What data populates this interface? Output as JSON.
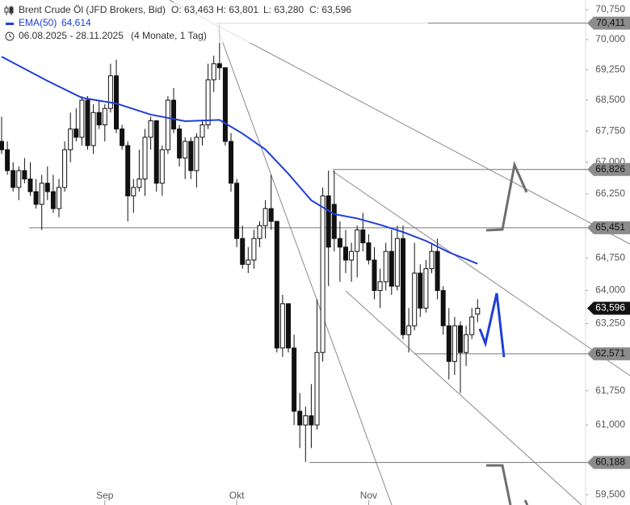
{
  "header": {
    "title": "Brent Crude Öl (JFD Brokers, Bid)",
    "ohlc": [
      "O: 63,463",
      "H: 63,801",
      "L: 63,280",
      "C: 63,596"
    ],
    "range": "06.08.2025 - 28.11.2025",
    "span": "(4 Monate, 1 Tag)"
  },
  "chart_data": {
    "type": "candlestick",
    "log_scale": true,
    "categories": [
      null,
      null,
      null,
      null,
      null,
      null,
      null,
      null,
      null,
      null,
      null,
      null,
      null,
      null,
      null,
      null,
      null,
      null,
      "Sep",
      null,
      null,
      null,
      null,
      null,
      null,
      null,
      null,
      null,
      null,
      null,
      null,
      null,
      null,
      null,
      null,
      null,
      null,
      null,
      null,
      null,
      null,
      "Okt",
      null,
      null,
      null,
      null,
      null,
      null,
      null,
      null,
      null,
      null,
      null,
      null,
      null,
      null,
      null,
      null,
      null,
      null,
      null,
      null,
      null,
      null,
      "Nov",
      null,
      null,
      null,
      null,
      null,
      null,
      null,
      null,
      null,
      null,
      null,
      null,
      null,
      null,
      null,
      null,
      null,
      null,
      null
    ],
    "ohlc": [
      [
        67500,
        68100,
        67200,
        67300
      ],
      [
        67300,
        67500,
        66700,
        66800
      ],
      [
        66800,
        67000,
        66300,
        66400
      ],
      [
        66400,
        66900,
        66100,
        66800
      ],
      [
        66800,
        67100,
        66500,
        66600
      ],
      [
        66600,
        67000,
        66200,
        66300
      ],
      [
        66300,
        66600,
        65900,
        66000
      ],
      [
        66000,
        66700,
        65400,
        66500
      ],
      [
        66500,
        66900,
        66100,
        66300
      ],
      [
        66300,
        66700,
        65800,
        65900
      ],
      [
        65900,
        66600,
        65700,
        66400
      ],
      [
        66400,
        67500,
        66300,
        67300
      ],
      [
        67300,
        68200,
        67000,
        67800
      ],
      [
        67800,
        68300,
        67500,
        67600
      ],
      [
        67600,
        68600,
        67400,
        68500
      ],
      [
        68500,
        68600,
        67300,
        67400
      ],
      [
        67400,
        68400,
        67200,
        68200
      ],
      [
        68200,
        68500,
        67800,
        67900
      ],
      [
        67900,
        68400,
        67500,
        68300
      ],
      [
        68300,
        69400,
        68200,
        69100
      ],
      [
        69100,
        69500,
        67700,
        67800
      ],
      [
        67800,
        67900,
        67300,
        67400
      ],
      [
        67400,
        67500,
        65600,
        66200
      ],
      [
        66200,
        66600,
        65800,
        66400
      ],
      [
        66400,
        67300,
        66300,
        66600
      ],
      [
        66600,
        67800,
        66200,
        67600
      ],
      [
        67600,
        68100,
        67300,
        68000
      ],
      [
        68000,
        68000,
        66300,
        66500
      ],
      [
        66500,
        67400,
        66200,
        67300
      ],
      [
        67300,
        68600,
        67200,
        68500
      ],
      [
        68500,
        68800,
        67700,
        67800
      ],
      [
        67800,
        67900,
        66900,
        67100
      ],
      [
        67100,
        67600,
        66600,
        67500
      ],
      [
        67500,
        67600,
        66600,
        66800
      ],
      [
        66800,
        67700,
        66400,
        67600
      ],
      [
        67600,
        68000,
        67400,
        67900
      ],
      [
        67900,
        69400,
        67800,
        69000
      ],
      [
        69000,
        69600,
        68700,
        69400
      ],
      [
        69400,
        70400,
        69000,
        69300
      ],
      [
        69300,
        69300,
        67400,
        67500
      ],
      [
        67500,
        67700,
        66300,
        66500
      ],
      [
        66500,
        66600,
        65000,
        65200
      ],
      [
        65200,
        65500,
        64500,
        64600
      ],
      [
        64600,
        65000,
        64400,
        64700
      ],
      [
        64700,
        65400,
        64500,
        65200
      ],
      [
        65200,
        65600,
        65000,
        65500
      ],
      [
        65500,
        66100,
        65200,
        65900
      ],
      [
        65900,
        66700,
        65400,
        65600
      ],
      [
        65600,
        65600,
        62600,
        62700
      ],
      [
        62700,
        63900,
        62500,
        63700
      ],
      [
        63700,
        63700,
        62600,
        62700
      ],
      [
        62700,
        63000,
        61000,
        61300
      ],
      [
        61300,
        61700,
        60500,
        61000
      ],
      [
        61000,
        61400,
        60200,
        61200
      ],
      [
        61200,
        61900,
        60500,
        61000
      ],
      [
        61000,
        63800,
        60900,
        62600
      ],
      [
        62600,
        66400,
        62400,
        66200
      ],
      [
        66200,
        66800,
        64100,
        65000
      ],
      [
        66000,
        66800,
        64900,
        65200
      ],
      [
        65200,
        65600,
        64200,
        65000
      ],
      [
        65000,
        65400,
        64400,
        64700
      ],
      [
        64700,
        65100,
        64200,
        64900
      ],
      [
        64900,
        65500,
        64300,
        65400
      ],
      [
        65400,
        65800,
        64900,
        65100
      ],
      [
        65100,
        65300,
        64600,
        64700
      ],
      [
        64700,
        65000,
        63800,
        64000
      ],
      [
        64000,
        64500,
        63600,
        64200
      ],
      [
        64200,
        65100,
        64000,
        64900
      ],
      [
        64900,
        65400,
        63900,
        64100
      ],
      [
        64100,
        65500,
        64000,
        65200
      ],
      [
        65200,
        65500,
        62900,
        63000
      ],
      [
        63000,
        63600,
        62600,
        63200
      ],
      [
        63200,
        65100,
        63100,
        64400
      ],
      [
        64400,
        64600,
        63400,
        63600
      ],
      [
        63600,
        64700,
        63500,
        64500
      ],
      [
        64500,
        65100,
        64400,
        64900
      ],
      [
        64900,
        65200,
        63800,
        64000
      ],
      [
        64000,
        64100,
        63000,
        63200
      ],
      [
        63200,
        63600,
        62000,
        62400
      ],
      [
        62400,
        63400,
        62100,
        63200
      ],
      [
        63200,
        63300,
        61700,
        62600
      ],
      [
        62600,
        63200,
        62300,
        63000
      ],
      [
        63000,
        63600,
        62900,
        63400
      ],
      [
        63463,
        63801,
        63280,
        63596
      ]
    ],
    "ema": {
      "name": "EMA(50)",
      "label": "64,614",
      "color": "#1f3fd6",
      "x": [
        0,
        8,
        14,
        20,
        26,
        32,
        38,
        42,
        46,
        50,
        54,
        58,
        62,
        66,
        70,
        74,
        78,
        83
      ],
      "values": [
        69575,
        68975,
        68560,
        68420,
        68150,
        67990,
        68020,
        67690,
        67305,
        66725,
        66095,
        65770,
        65670,
        65520,
        65350,
        65145,
        64880,
        64614
      ]
    },
    "ylim": [
      59282,
      70996
    ],
    "yticks": [
      {
        "value": 59500,
        "label": "59,500"
      },
      {
        "value": 61000,
        "label": "61,000"
      },
      {
        "value": 61750,
        "label": "61,750"
      },
      {
        "value": 63250,
        "label": "63,250"
      },
      {
        "value": 64000,
        "label": "64,000"
      },
      {
        "value": 64750,
        "label": "64,750"
      },
      {
        "value": 66250,
        "label": "66,250"
      },
      {
        "value": 67000,
        "label": "67,000"
      },
      {
        "value": 67750,
        "label": "67,750"
      },
      {
        "value": 68500,
        "label": "68,500"
      },
      {
        "value": 69250,
        "label": "69,250"
      },
      {
        "value": 70000,
        "label": "70,000"
      },
      {
        "value": 70750,
        "label": "70,750"
      }
    ],
    "levels": [
      {
        "value": 70411,
        "label": "70,411"
      },
      {
        "value": 66826,
        "label": "66,826"
      },
      {
        "value": 65451,
        "label": "65,451"
      },
      {
        "value": 62571,
        "label": "62,571"
      },
      {
        "value": 60188,
        "label": "60,188"
      }
    ],
    "last_price": {
      "value": 63596,
      "label": "63,596"
    }
  }
}
